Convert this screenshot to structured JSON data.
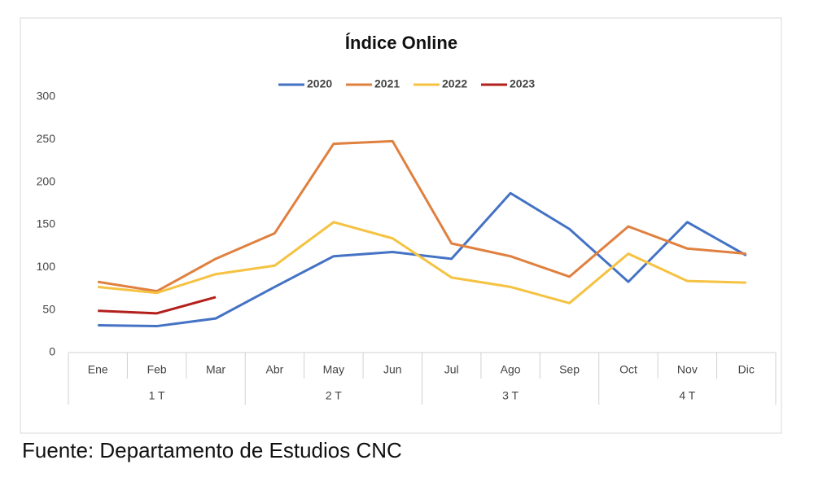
{
  "chart_data": {
    "type": "line",
    "title": "Índice Online",
    "categories": [
      "Ene",
      "Feb",
      "Mar",
      "Abr",
      "May",
      "Jun",
      "Jul",
      "Ago",
      "Sep",
      "Oct",
      "Nov",
      "Dic"
    ],
    "category_groups": [
      "1 T",
      "2 T",
      "3 T",
      "4 T"
    ],
    "series": [
      {
        "name": "2020",
        "color": "#4472c4",
        "values": [
          32,
          31,
          40,
          77,
          113,
          118,
          110,
          187,
          145,
          83,
          153,
          114
        ]
      },
      {
        "name": "2021",
        "color": "#e0803f",
        "values": [
          83,
          72,
          110,
          140,
          245,
          248,
          128,
          113,
          89,
          148,
          122,
          116
        ]
      },
      {
        "name": "2022",
        "color": "#f5c242",
        "values": [
          77,
          70,
          92,
          102,
          153,
          134,
          88,
          77,
          58,
          116,
          84,
          82
        ]
      },
      {
        "name": "2023",
        "color": "#b3201c",
        "values": [
          49,
          46,
          65,
          null,
          null,
          null,
          null,
          null,
          null,
          null,
          null,
          null
        ]
      }
    ],
    "ylim": [
      0,
      300
    ],
    "yticks": [
      0,
      50,
      100,
      150,
      200,
      250,
      300
    ],
    "grid": false,
    "legend": "top"
  },
  "source": "Fuente: Departamento de Estudios CNC"
}
